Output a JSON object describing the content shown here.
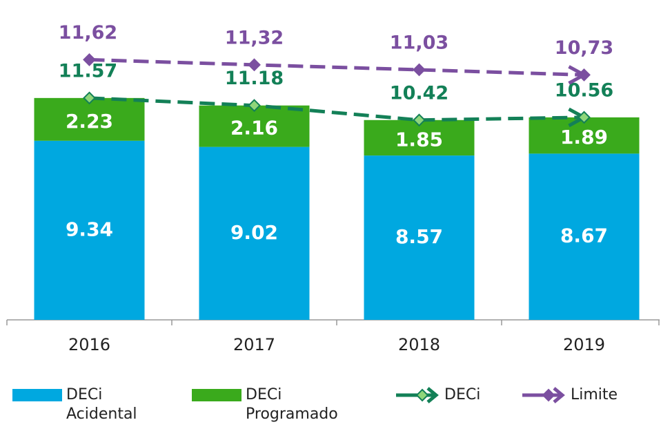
{
  "chart_data": {
    "type": "stacked_bar_line",
    "categories": [
      "2016",
      "2017",
      "2018",
      "2019"
    ],
    "series": [
      {
        "name": "DECi Acidental",
        "type": "bar",
        "color": "#00a8e0",
        "values": [
          9.34,
          9.02,
          8.57,
          8.67
        ]
      },
      {
        "name": "DECi Programado",
        "type": "bar",
        "color": "#3aaa1c",
        "values": [
          2.23,
          2.16,
          1.85,
          1.89
        ]
      },
      {
        "name": "DECi",
        "type": "line",
        "color": "#138057",
        "values": [
          11.57,
          11.18,
          10.42,
          10.56
        ]
      },
      {
        "name": "Limite",
        "type": "line",
        "color": "#7b4fa0",
        "axis": "y2",
        "values": [
          11.62,
          11.32,
          11.03,
          10.73
        ],
        "value_labels": [
          "11,62",
          "11,32",
          "11,03",
          "10,73"
        ]
      }
    ],
    "ylim": [
      0,
      15.6
    ],
    "y2lim": [
      -3.6,
      13.9
    ],
    "legend": "bottom"
  }
}
